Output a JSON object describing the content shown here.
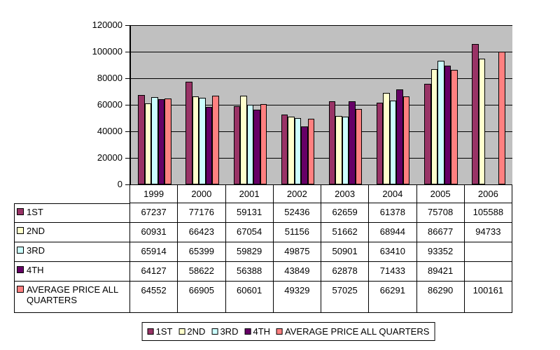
{
  "chart_data": {
    "type": "bar",
    "title": "",
    "xlabel": "",
    "ylabel": "",
    "categories": [
      "1999",
      "2000",
      "2001",
      "2002",
      "2003",
      "2004",
      "2005",
      "2006"
    ],
    "series": [
      {
        "name": "1ST",
        "color": "#993366",
        "values": [
          67237,
          77176,
          59131,
          52436,
          62659,
          61378,
          75708,
          105588
        ]
      },
      {
        "name": "2ND",
        "color": "#FFFFCC",
        "values": [
          60931,
          66423,
          67054,
          51156,
          51662,
          68944,
          86677,
          94733
        ]
      },
      {
        "name": "3RD",
        "color": "#CCFFFF",
        "values": [
          65914,
          65399,
          59829,
          49875,
          50901,
          63410,
          93352,
          null
        ]
      },
      {
        "name": "4TH",
        "color": "#660066",
        "values": [
          64127,
          58622,
          56388,
          43849,
          62878,
          71433,
          89421,
          null
        ]
      },
      {
        "name": "AVERAGE PRICE ALL QUARTERS",
        "color": "#FF8080",
        "values": [
          64552,
          66905,
          60601,
          49329,
          57025,
          66291,
          86290,
          100161
        ]
      }
    ],
    "ylim": [
      0,
      120000
    ],
    "ytick_step": 20000,
    "ytick_labels": [
      "120000",
      "100000",
      "80000",
      "60000",
      "40000",
      "20000",
      "0"
    ],
    "grid": true,
    "legend_position": "bottom",
    "plot_bg_color": "#C0C0C0",
    "gridline_color": "#000000",
    "bar_border_color": "#000000"
  },
  "table": {
    "col_headers": [
      "1999",
      "2000",
      "2001",
      "2002",
      "2003",
      "2004",
      "2005",
      "2006"
    ],
    "rows": [
      {
        "label": "1ST",
        "values": [
          "67237",
          "77176",
          "59131",
          "52436",
          "62659",
          "61378",
          "75708",
          "105588"
        ]
      },
      {
        "label": "2ND",
        "values": [
          "60931",
          "66423",
          "67054",
          "51156",
          "51662",
          "68944",
          "86677",
          "94733"
        ]
      },
      {
        "label": "3RD",
        "values": [
          "65914",
          "65399",
          "59829",
          "49875",
          "50901",
          "63410",
          "93352",
          ""
        ]
      },
      {
        "label": "4TH",
        "values": [
          "64127",
          "58622",
          "56388",
          "43849",
          "62878",
          "71433",
          "89421",
          ""
        ]
      },
      {
        "label": "AVERAGE PRICE ALL QUARTERS",
        "values": [
          "64552",
          "66905",
          "60601",
          "49329",
          "57025",
          "66291",
          "86290",
          "100161"
        ]
      }
    ]
  },
  "legend": {
    "items": [
      "1ST",
      "2ND",
      "3RD",
      "4TH",
      "AVERAGE PRICE ALL QUARTERS"
    ]
  }
}
